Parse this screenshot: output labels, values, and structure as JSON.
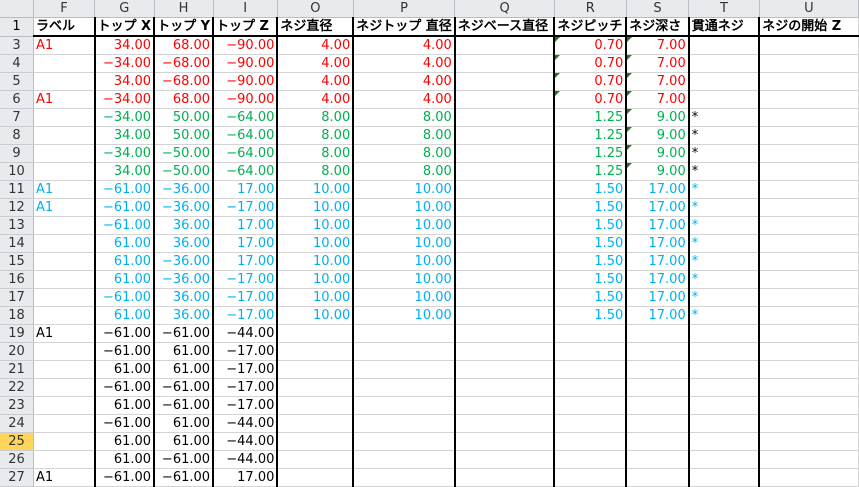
{
  "columns": [
    "F",
    "G",
    "H",
    "I",
    "O",
    "P",
    "Q",
    "R",
    "S",
    "T",
    "U"
  ],
  "header_row": {
    "num": "1",
    "cells": [
      "ラベル",
      "トップ X",
      "トップ Y",
      "トップ Z",
      "ネジ直径",
      "ネジトップ 直径",
      "ネジベース直径",
      "ネジピッチ",
      "ネジ深さ",
      "貫通ネジ",
      "ネジの開始 Z"
    ]
  },
  "colors": {
    "red": "#ff0000",
    "green": "#00b050",
    "blue": "#00b0f0",
    "black": "#000000"
  },
  "selected_row": "25",
  "comment_indicator_color": "#1e7b1e",
  "rows": [
    {
      "num": "3",
      "color": "red",
      "cells": [
        "A1",
        "34.00",
        "68.00",
        "−90.00",
        "4.00",
        "4.00",
        "",
        "0.70",
        "7.00",
        "",
        ""
      ],
      "flags": [
        "R",
        "S"
      ]
    },
    {
      "num": "4",
      "color": "red",
      "cells": [
        "",
        "−34.00",
        "−68.00",
        "−90.00",
        "4.00",
        "4.00",
        "",
        "0.70",
        "7.00",
        "",
        ""
      ],
      "flags": [
        "R",
        "S"
      ]
    },
    {
      "num": "5",
      "color": "red",
      "cells": [
        "",
        "34.00",
        "−68.00",
        "−90.00",
        "4.00",
        "4.00",
        "",
        "0.70",
        "7.00",
        "",
        ""
      ],
      "flags": [
        "R",
        "S"
      ]
    },
    {
      "num": "6",
      "color": "red",
      "cells": [
        "A1",
        "−34.00",
        "68.00",
        "−90.00",
        "4.00",
        "4.00",
        "",
        "0.70",
        "7.00",
        "",
        ""
      ],
      "flags": [
        "R",
        "S"
      ]
    },
    {
      "num": "7",
      "color": "green",
      "cells": [
        "",
        "−34.00",
        "50.00",
        "−64.00",
        "8.00",
        "8.00",
        "",
        "1.25",
        "9.00",
        "*",
        ""
      ],
      "flags": [
        "S"
      ],
      "tcolor": "black"
    },
    {
      "num": "8",
      "color": "green",
      "cells": [
        "",
        "34.00",
        "50.00",
        "−64.00",
        "8.00",
        "8.00",
        "",
        "1.25",
        "9.00",
        "*",
        ""
      ],
      "flags": [
        "S"
      ],
      "tcolor": "black"
    },
    {
      "num": "9",
      "color": "green",
      "cells": [
        "",
        "−34.00",
        "−50.00",
        "−64.00",
        "8.00",
        "8.00",
        "",
        "1.25",
        "9.00",
        "*",
        ""
      ],
      "flags": [
        "S"
      ],
      "tcolor": "black"
    },
    {
      "num": "10",
      "color": "green",
      "cells": [
        "",
        "34.00",
        "−50.00",
        "−64.00",
        "8.00",
        "8.00",
        "",
        "1.25",
        "9.00",
        "*",
        ""
      ],
      "flags": [
        "S"
      ],
      "tcolor": "black"
    },
    {
      "num": "11",
      "color": "blue",
      "cells": [
        "A1",
        "−61.00",
        "−36.00",
        "17.00",
        "10.00",
        "10.00",
        "",
        "1.50",
        "17.00",
        "*",
        ""
      ]
    },
    {
      "num": "12",
      "color": "blue",
      "cells": [
        "A1",
        "−61.00",
        "−36.00",
        "−17.00",
        "10.00",
        "10.00",
        "",
        "1.50",
        "17.00",
        "*",
        ""
      ]
    },
    {
      "num": "13",
      "color": "blue",
      "cells": [
        "",
        "−61.00",
        "36.00",
        "17.00",
        "10.00",
        "10.00",
        "",
        "1.50",
        "17.00",
        "*",
        ""
      ]
    },
    {
      "num": "14",
      "color": "blue",
      "cells": [
        "",
        "61.00",
        "36.00",
        "17.00",
        "10.00",
        "10.00",
        "",
        "1.50",
        "17.00",
        "*",
        ""
      ]
    },
    {
      "num": "15",
      "color": "blue",
      "cells": [
        "",
        "61.00",
        "−36.00",
        "17.00",
        "10.00",
        "10.00",
        "",
        "1.50",
        "17.00",
        "*",
        ""
      ]
    },
    {
      "num": "16",
      "color": "blue",
      "cells": [
        "",
        "61.00",
        "−36.00",
        "−17.00",
        "10.00",
        "10.00",
        "",
        "1.50",
        "17.00",
        "*",
        ""
      ]
    },
    {
      "num": "17",
      "color": "blue",
      "cells": [
        "",
        "−61.00",
        "36.00",
        "−17.00",
        "10.00",
        "10.00",
        "",
        "1.50",
        "17.00",
        "*",
        ""
      ]
    },
    {
      "num": "18",
      "color": "blue",
      "cells": [
        "",
        "61.00",
        "36.00",
        "−17.00",
        "10.00",
        "10.00",
        "",
        "1.50",
        "17.00",
        "*",
        ""
      ]
    },
    {
      "num": "19",
      "color": "black",
      "cells": [
        "A1",
        "−61.00",
        "−61.00",
        "−44.00",
        "",
        "",
        "",
        "",
        "",
        "",
        ""
      ]
    },
    {
      "num": "20",
      "color": "black",
      "cells": [
        "",
        "−61.00",
        "61.00",
        "−17.00",
        "",
        "",
        "",
        "",
        "",
        "",
        ""
      ]
    },
    {
      "num": "21",
      "color": "black",
      "cells": [
        "",
        "61.00",
        "61.00",
        "−17.00",
        "",
        "",
        "",
        "",
        "",
        "",
        ""
      ]
    },
    {
      "num": "22",
      "color": "black",
      "cells": [
        "",
        "−61.00",
        "−61.00",
        "−17.00",
        "",
        "",
        "",
        "",
        "",
        "",
        ""
      ]
    },
    {
      "num": "23",
      "color": "black",
      "cells": [
        "",
        "61.00",
        "−61.00",
        "−17.00",
        "",
        "",
        "",
        "",
        "",
        "",
        ""
      ]
    },
    {
      "num": "24",
      "color": "black",
      "cells": [
        "",
        "−61.00",
        "61.00",
        "−44.00",
        "",
        "",
        "",
        "",
        "",
        "",
        ""
      ]
    },
    {
      "num": "25",
      "color": "black",
      "cells": [
        "",
        "61.00",
        "61.00",
        "−44.00",
        "",
        "",
        "",
        "",
        "",
        "",
        ""
      ]
    },
    {
      "num": "26",
      "color": "black",
      "cells": [
        "",
        "61.00",
        "−61.00",
        "−44.00",
        "",
        "",
        "",
        "",
        "",
        "",
        ""
      ]
    },
    {
      "num": "27",
      "color": "black",
      "cells": [
        "A1",
        "−61.00",
        "−61.00",
        "17.00",
        "",
        "",
        "",
        "",
        "",
        "",
        ""
      ]
    }
  ]
}
